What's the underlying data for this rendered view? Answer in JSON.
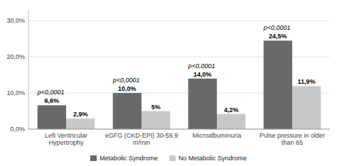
{
  "chart_data": {
    "type": "bar",
    "categories": [
      "Left Ventricular\nHypertrophy",
      "eGFG (CKD-EPI) 30-59,9\nm/min",
      "Microalbuminuria",
      "Pulse pressure in older\nthan 65"
    ],
    "series": [
      {
        "name": "Metabolic Syndrome",
        "color": "#696969",
        "values": [
          6.6,
          10.0,
          14.0,
          24.5
        ],
        "value_labels": [
          "6,6%",
          "10,0%",
          "14,0%",
          "24,5%"
        ]
      },
      {
        "name": "No Metabolic Syndrome",
        "color": "#c8c8c8",
        "values": [
          2.9,
          5.0,
          4.2,
          11.9
        ],
        "value_labels": [
          "2,9%",
          "5%",
          "4,2%",
          "11,9%"
        ]
      }
    ],
    "annotations": [
      "p<0,0001",
      "p<0,0001",
      "p<0,0001",
      "p<0,0001"
    ],
    "ylim": [
      0,
      33
    ],
    "yticks": [
      {
        "value": 0,
        "label": "0,0%"
      },
      {
        "value": 10.0,
        "label": "10,0%"
      },
      {
        "value": 20.0,
        "label": "20,0%"
      },
      {
        "value": 30.0,
        "label": "30,0%"
      }
    ],
    "grid": true,
    "legend": "bottom",
    "data_labels": true
  }
}
